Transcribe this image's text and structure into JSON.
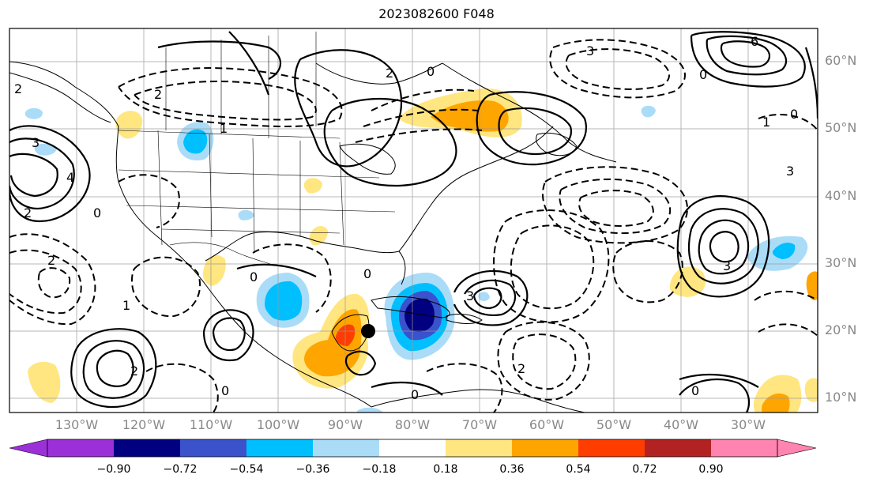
{
  "title": "2023082600 F048",
  "lat_labels": [
    "60°N",
    "50°N",
    "40°N",
    "30°N",
    "20°N",
    "10°N"
  ],
  "lon_labels": [
    "130°W",
    "120°W",
    "110°W",
    "100°W",
    "90°W",
    "80°W",
    "70°W",
    "60°W",
    "50°W",
    "40°W",
    "30°W"
  ],
  "colorbar": {
    "ticks": [
      "−0.90",
      "−0.72",
      "−0.54",
      "−0.36",
      "−0.18",
      "0.18",
      "0.36",
      "0.54",
      "0.72",
      "0.90"
    ],
    "colors": [
      "#9b30d9",
      "#000080",
      "#3a52cc",
      "#00bfff",
      "#aadcf8",
      "#ffffff",
      "#ffe680",
      "#ffa500",
      "#ff3d00",
      "#b22222",
      "#ff85b0"
    ]
  },
  "contour_labels": [
    "2",
    "3",
    "4",
    "0",
    "1",
    "6",
    "2",
    "0",
    "3",
    "1",
    "0",
    "2",
    "3",
    "2",
    "0",
    "1",
    "3",
    "0",
    "2",
    "0",
    "0",
    "3",
    "2",
    "0",
    "2",
    "0"
  ],
  "storm_marker": "black-dot"
}
